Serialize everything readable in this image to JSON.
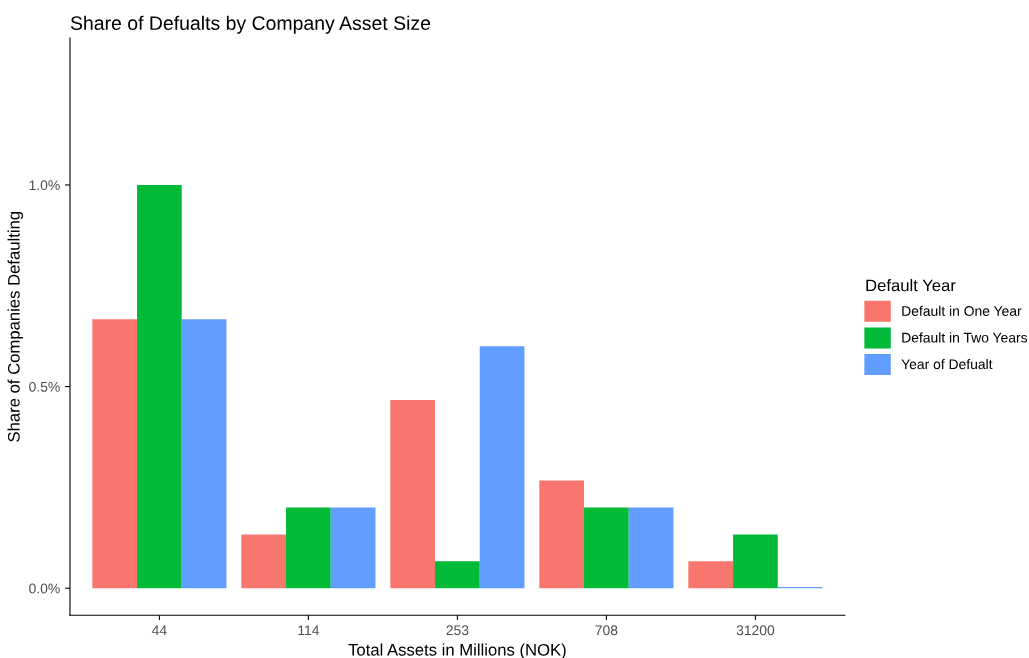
{
  "chart_data": {
    "type": "bar",
    "title": "Share of Defualts by Company Asset Size",
    "xlabel": "Total Assets in Millions (NOK)",
    "ylabel": "Share of Companies Defaulting",
    "legend_title": "Default Year",
    "categories": [
      "44",
      "114",
      "253",
      "708",
      "31200"
    ],
    "series": [
      {
        "name": "Default in One Year",
        "color": "#f8766d",
        "values": [
          0.667,
          0.133,
          0.467,
          0.267,
          0.067
        ]
      },
      {
        "name": "Default in Two Years",
        "color": "#00ba38",
        "values": [
          1.0,
          0.2,
          0.067,
          0.2,
          0.133
        ]
      },
      {
        "name": "Year of Defualt",
        "color": "#619cff",
        "values": [
          0.667,
          0.2,
          0.6,
          0.2,
          0.003
        ]
      }
    ],
    "ylim": [
      -0.067,
      1.364
    ],
    "yticks": [
      {
        "value": 0,
        "label": "0.0%"
      },
      {
        "value": 0.5,
        "label": "0.5%"
      },
      {
        "value": 1.0,
        "label": "1.0%"
      }
    ],
    "grid": false,
    "legend": "right"
  }
}
